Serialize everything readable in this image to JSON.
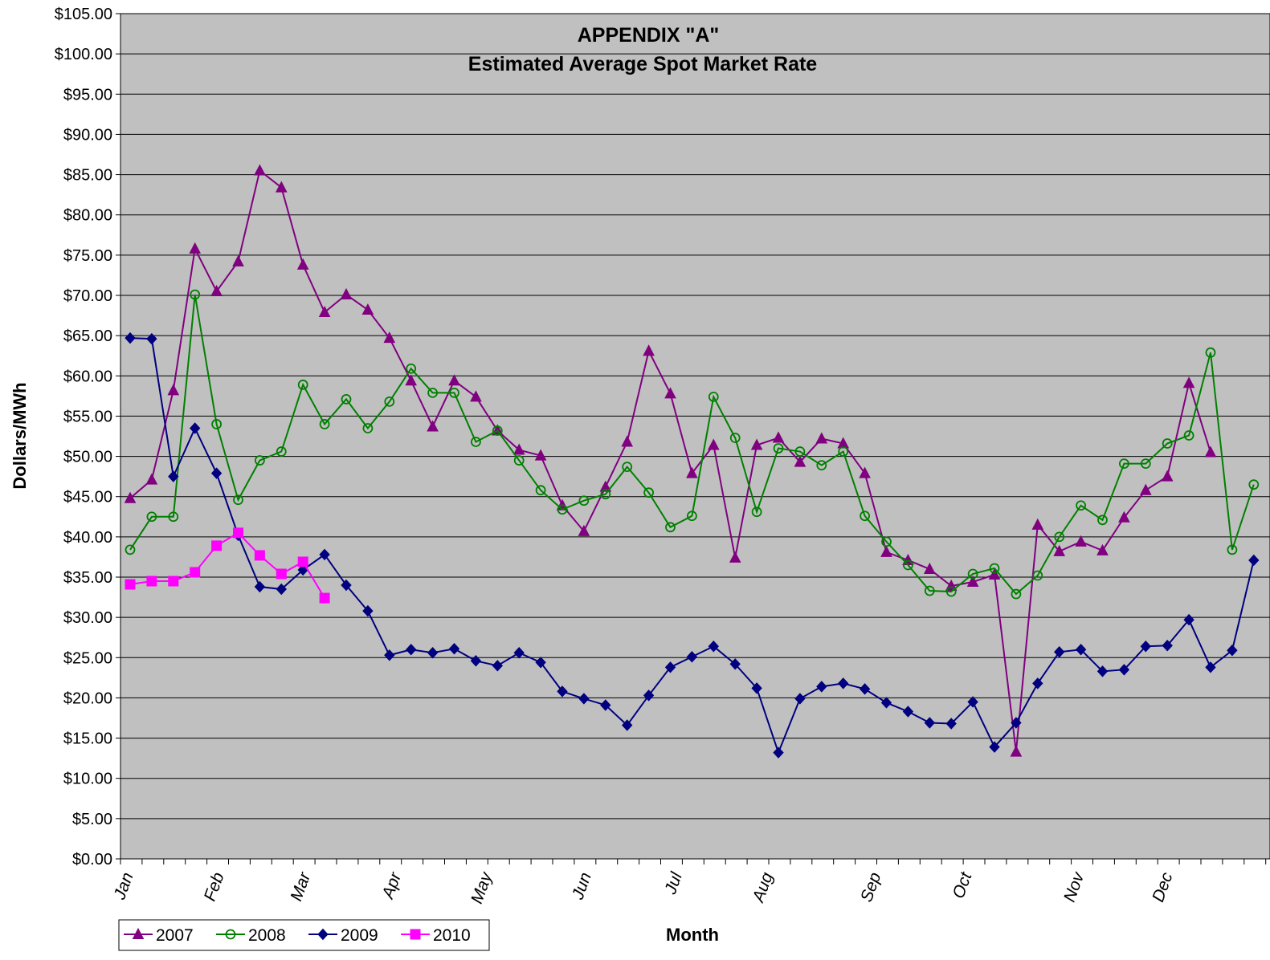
{
  "chart_data": {
    "type": "line",
    "title": "APPENDIX \"A\"",
    "subtitle": "Estimated Average Spot Market Rate",
    "xlabel": "Month",
    "ylabel": "Dollars/MWh",
    "ylim": [
      0,
      105
    ],
    "yticks": [
      "$0.00",
      "$5.00",
      "$10.00",
      "$15.00",
      "$20.00",
      "$25.00",
      "$30.00",
      "$35.00",
      "$40.00",
      "$45.00",
      "$50.00",
      "$55.00",
      "$60.00",
      "$65.00",
      "$70.00",
      "$75.00",
      "$80.00",
      "$85.00",
      "$90.00",
      "$95.00",
      "$100.00",
      "$105.00"
    ],
    "months": [
      {
        "label": "Jan",
        "week": 1
      },
      {
        "label": "Feb",
        "week": 5.2
      },
      {
        "label": "Mar",
        "week": 9.2
      },
      {
        "label": "Apr",
        "week": 13.4
      },
      {
        "label": "May",
        "week": 17.6
      },
      {
        "label": "Jun",
        "week": 22.2
      },
      {
        "label": "Jul",
        "week": 26.4
      },
      {
        "label": "Aug",
        "week": 30.6
      },
      {
        "label": "Sep",
        "week": 35.6
      },
      {
        "label": "Oct",
        "week": 39.8
      },
      {
        "label": "Nov",
        "week": 45.0
      },
      {
        "label": "Dec",
        "week": 49.1
      }
    ],
    "weeks": 53,
    "grid": true,
    "legend_position": "bottom-left",
    "plot_background": "#c0c0c0",
    "series": [
      {
        "name": "2007",
        "color": "#800080",
        "marker": "triangle",
        "values": [
          44.8,
          47.1,
          58.2,
          75.8,
          70.5,
          74.2,
          85.5,
          83.4,
          73.8,
          67.9,
          70.1,
          68.2,
          64.7,
          59.4,
          53.7,
          59.4,
          57.4,
          53.2,
          50.8,
          50.1,
          43.9,
          40.7,
          46.2,
          51.8,
          63.1,
          57.8,
          47.9,
          51.4,
          37.4,
          51.4,
          52.3,
          49.3,
          52.2,
          51.6,
          47.9,
          38.1,
          37.1,
          36.0,
          33.9,
          34.4,
          35.3,
          13.3,
          41.5,
          38.2,
          39.4,
          38.3,
          42.4,
          45.8,
          47.5,
          59.1,
          50.5
        ]
      },
      {
        "name": "2008",
        "color": "#008000",
        "marker": "circle-open",
        "values": [
          38.4,
          42.5,
          42.5,
          70.1,
          54.0,
          44.6,
          49.5,
          50.6,
          58.9,
          54.0,
          57.1,
          53.5,
          56.8,
          60.9,
          57.9,
          57.9,
          51.8,
          53.2,
          49.5,
          45.8,
          43.4,
          44.5,
          45.3,
          48.7,
          45.5,
          41.2,
          42.6,
          57.4,
          52.3,
          43.1,
          51.0,
          50.6,
          48.9,
          50.6,
          42.6,
          39.4,
          36.5,
          33.3,
          33.2,
          35.4,
          36.1,
          32.9,
          35.2,
          40.0,
          43.9,
          42.1,
          49.1,
          49.1,
          51.6,
          52.6,
          62.9,
          38.4,
          46.5
        ]
      },
      {
        "name": "2009",
        "color": "#000080",
        "marker": "diamond",
        "values": [
          64.7,
          64.6,
          47.5,
          53.5,
          47.9,
          40.2,
          33.8,
          33.5,
          35.9,
          37.8,
          34.0,
          30.8,
          25.3,
          26.0,
          25.6,
          26.1,
          24.6,
          24.0,
          25.6,
          24.4,
          20.8,
          19.9,
          19.1,
          16.6,
          20.3,
          23.8,
          25.1,
          26.4,
          24.2,
          21.2,
          13.2,
          19.9,
          21.4,
          21.8,
          21.1,
          19.4,
          18.3,
          16.9,
          16.8,
          19.5,
          13.9,
          16.9,
          21.8,
          25.7,
          26.0,
          23.3,
          23.5,
          26.4,
          26.5,
          29.7,
          23.8,
          25.9,
          37.1
        ]
      },
      {
        "name": "2010",
        "color": "#ff00ff",
        "marker": "square",
        "values": [
          34.1,
          34.5,
          34.5,
          35.6,
          38.9,
          40.5,
          37.7,
          35.4,
          36.9,
          32.4
        ]
      }
    ]
  }
}
